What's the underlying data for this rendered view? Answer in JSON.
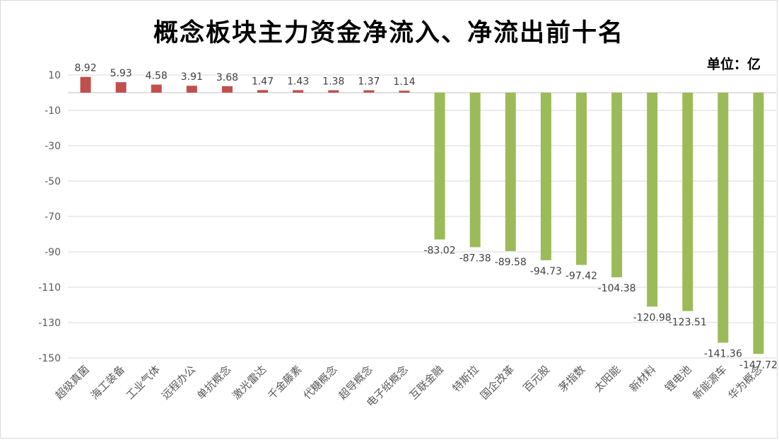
{
  "chart_data": {
    "type": "bar",
    "title": "概念板块主力资金净流入、净流出前十名",
    "unit_label": "单位：亿",
    "categories": [
      "超级真菌",
      "海工装备",
      "工业气体",
      "远程办公",
      "单抗概念",
      "激光雷达",
      "千金藤素",
      "代糖概念",
      "超导概念",
      "电子纸概念",
      "互联金融",
      "特斯拉",
      "国企改革",
      "百元股",
      "茅指数",
      "太阳能",
      "新材料",
      "锂电池",
      "新能源车",
      "华为概念"
    ],
    "values": [
      8.92,
      5.93,
      4.58,
      3.91,
      3.68,
      1.47,
      1.43,
      1.38,
      1.37,
      1.14,
      -83.02,
      -87.38,
      -89.58,
      -94.73,
      -97.42,
      -104.38,
      -120.98,
      -123.51,
      -141.36,
      -147.72
    ],
    "value_labels": [
      "8.92",
      "5.93",
      "4.58",
      "3.91",
      "3.68",
      "1.47",
      "1.43",
      "1.38",
      "1.37",
      "1.14",
      "-83.02",
      "-87.38",
      "-89.58",
      "-94.73",
      "-97.42",
      "-104.38",
      "-120.98",
      "-123.51",
      "-141.36",
      "-147.72"
    ],
    "yticks": [
      10,
      -10,
      -30,
      -50,
      -70,
      -90,
      -110,
      -130,
      -150
    ],
    "ylim": [
      -150,
      10
    ],
    "grid": true,
    "colors": {
      "positive": "#c0504d",
      "negative": "#9bbb59",
      "grid": "#d9d9d9",
      "axis": "#bfbfbf"
    }
  }
}
